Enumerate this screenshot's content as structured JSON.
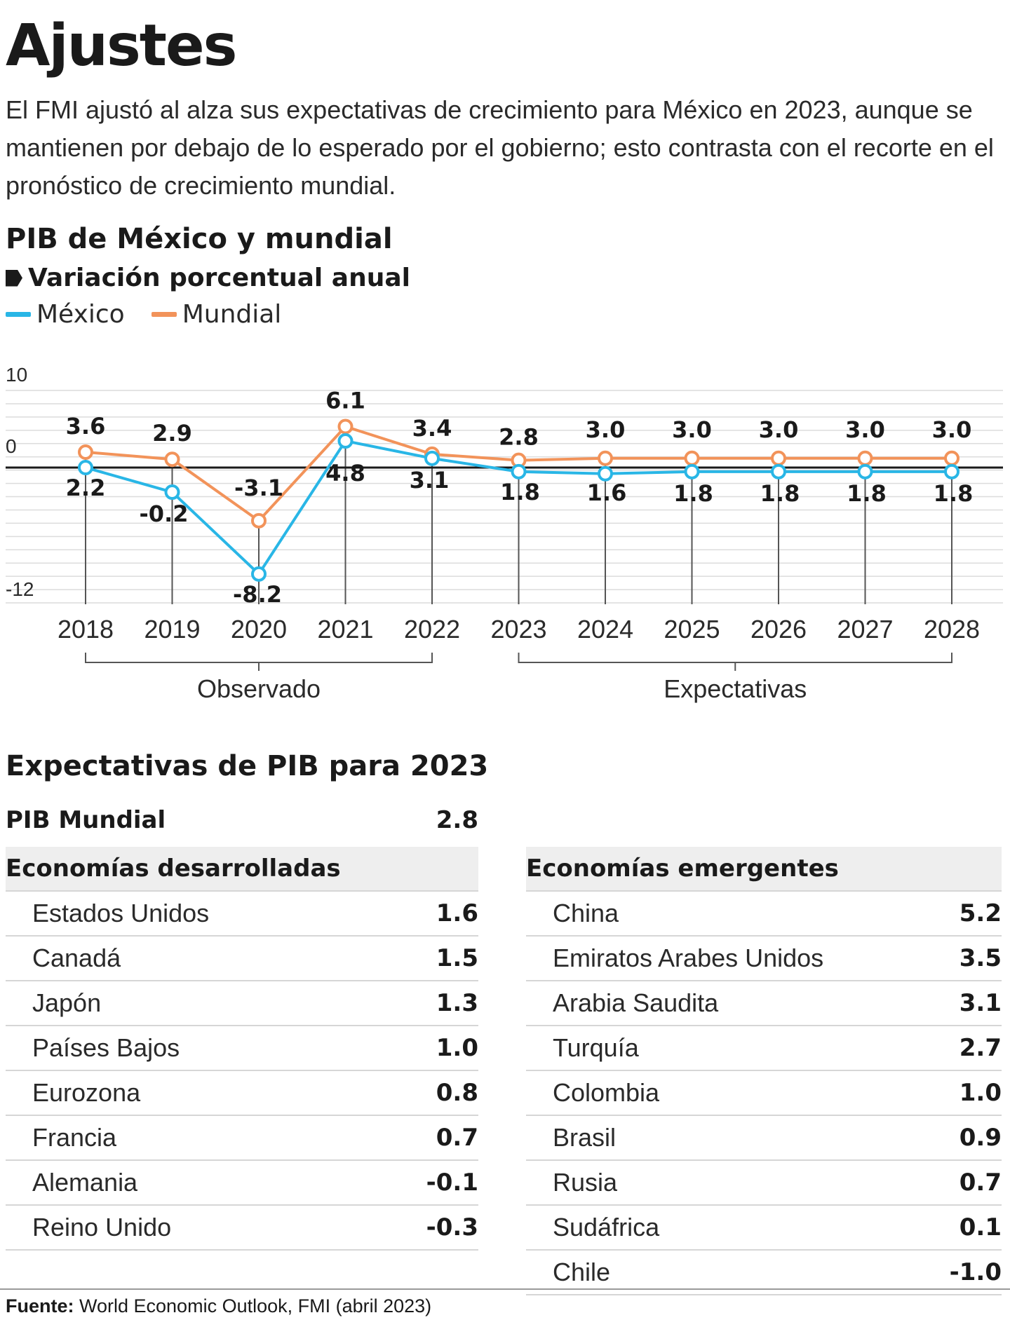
{
  "header": {
    "title": "Ajustes",
    "intro": "El FMI ajustó al alza sus expectativas de crecimiento para México en 2023, aunque se mantienen por debajo de lo esperado por el gobierno; esto contrasta con el recorte en el pronóstico de crecimiento mundial."
  },
  "chart_data": {
    "type": "line",
    "title": "PIB de México y mundial",
    "subtitle": "Variación porcentual anual",
    "x": [
      "2018",
      "2019",
      "2020",
      "2021",
      "2022",
      "2023",
      "2024",
      "2025",
      "2026",
      "2027",
      "2028"
    ],
    "series": [
      {
        "name": "México",
        "color": "#29b6e6",
        "values": [
          2.2,
          -0.2,
          -8.2,
          4.8,
          3.1,
          1.8,
          1.6,
          1.8,
          1.8,
          1.8,
          1.8
        ]
      },
      {
        "name": "Mundial",
        "color": "#f2935a",
        "values": [
          3.6,
          2.9,
          -3.1,
          6.1,
          3.4,
          2.8,
          3.0,
          3.0,
          3.0,
          3.0,
          3.0
        ]
      }
    ],
    "y_ticks": [
      "10",
      "0",
      "-12"
    ],
    "groups": [
      {
        "label": "Observado",
        "from": "2018",
        "to": "2022"
      },
      {
        "label": "Expectativas",
        "from": "2023",
        "to": "2028"
      }
    ],
    "grid": true
  },
  "expectativas": {
    "title": "Expectativas de PIB para 2023",
    "world_label": "PIB Mundial",
    "world_value": "2.8",
    "desarrolladas": {
      "title": "Economías desarrolladas",
      "rows": [
        {
          "name": "Estados Unidos",
          "value": "1.6"
        },
        {
          "name": "Canadá",
          "value": "1.5"
        },
        {
          "name": "Japón",
          "value": "1.3"
        },
        {
          "name": "Países Bajos",
          "value": "1.0"
        },
        {
          "name": "Eurozona",
          "value": "0.8"
        },
        {
          "name": "Francia",
          "value": "0.7"
        },
        {
          "name": "Alemania",
          "value": "-0.1"
        },
        {
          "name": "Reino Unido",
          "value": "-0.3"
        }
      ]
    },
    "emergentes": {
      "title": "Economías emergentes",
      "rows": [
        {
          "name": "China",
          "value": "5.2"
        },
        {
          "name": "Emiratos Arabes Unidos",
          "value": "3.5"
        },
        {
          "name": "Arabia Saudita",
          "value": "3.1"
        },
        {
          "name": "Turquía",
          "value": "2.7"
        },
        {
          "name": "Colombia",
          "value": "1.0"
        },
        {
          "name": "Brasil",
          "value": "0.9"
        },
        {
          "name": "Rusia",
          "value": "0.7"
        },
        {
          "name": "Sudáfrica",
          "value": "0.1"
        },
        {
          "name": "Chile",
          "value": "-1.0"
        }
      ]
    }
  },
  "source": {
    "label": "Fuente:",
    "text": " World Economic Outlook, FMI (abril 2023)"
  }
}
